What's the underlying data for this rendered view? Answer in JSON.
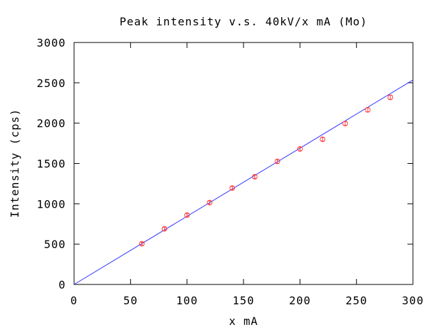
{
  "chart_data": {
    "type": "scatter",
    "title": "Peak intensity v.s. 40kV/x mA (Mo)",
    "xlabel": "x mA",
    "ylabel": "Intensity (cps)",
    "xlim": [
      0,
      300
    ],
    "ylim": [
      0,
      3000
    ],
    "xticks": [
      "0",
      "50",
      "100",
      "150",
      "200",
      "250",
      "300"
    ],
    "yticks": [
      "0",
      "500",
      "1000",
      "1500",
      "2000",
      "2500",
      "3000"
    ],
    "grid": false,
    "legend": "none",
    "series": [
      {
        "type": "scatter",
        "color": "#ff4040",
        "marker": "circle-with-errorbar",
        "x": [
          60,
          80,
          100,
          120,
          140,
          160,
          180,
          200,
          220,
          240,
          260,
          280
        ],
        "y": [
          505,
          690,
          860,
          1015,
          1195,
          1335,
          1525,
          1680,
          1800,
          1995,
          2165,
          2320
        ],
        "yerr": [
          18,
          18,
          18,
          20,
          20,
          20,
          22,
          22,
          22,
          24,
          24,
          26
        ]
      },
      {
        "type": "line",
        "color": "#3030ff",
        "x": [
          0,
          300
        ],
        "y": [
          0,
          2535
        ]
      }
    ]
  }
}
